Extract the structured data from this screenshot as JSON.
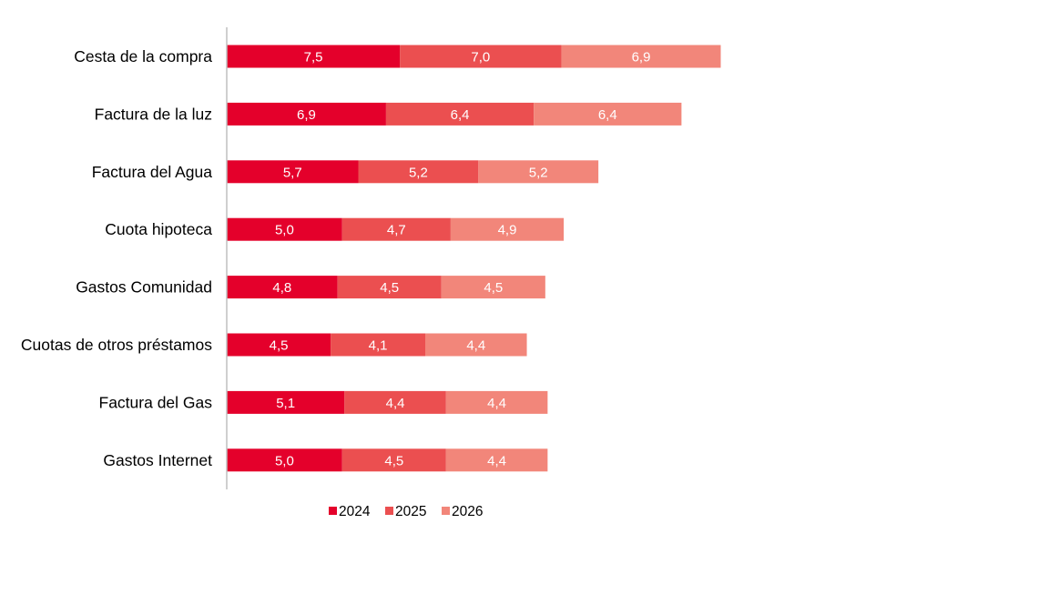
{
  "chart_data": {
    "type": "bar",
    "orientation": "horizontal",
    "stacked": true,
    "title": "",
    "xlabel": "",
    "ylabel": "",
    "xlim": [
      0,
      25
    ],
    "grid": false,
    "legend_position": "bottom",
    "categories": [
      "Cesta de la compra",
      "Factura de la luz",
      "Factura del Agua",
      "Cuota hipoteca",
      "Gastos Comunidad",
      "Cuotas de otros préstamos",
      "Factura del Gas",
      "Gastos Internet"
    ],
    "series": [
      {
        "name": "2024",
        "color": "#E4002B",
        "values": [
          7.5,
          6.9,
          5.7,
          5.0,
          4.8,
          4.5,
          5.1,
          5.0
        ],
        "labels": [
          "7,5",
          "6,9",
          "5,7",
          "5,0",
          "4,8",
          "4,5",
          "5,1",
          "5,0"
        ]
      },
      {
        "name": "2025",
        "color": "#EB4F50",
        "values": [
          7.0,
          6.4,
          5.2,
          4.7,
          4.5,
          4.1,
          4.4,
          4.5
        ],
        "labels": [
          "7,0",
          "6,4",
          "5,2",
          "4,7",
          "4,5",
          "4,1",
          "4,4",
          "4,5"
        ]
      },
      {
        "name": "2026",
        "color": "#F2867A",
        "values": [
          6.9,
          6.4,
          5.2,
          4.9,
          4.5,
          4.4,
          4.4,
          4.4
        ],
        "labels": [
          "6,9",
          "6,4",
          "5,2",
          "4,9",
          "4,5",
          "4,4",
          "4,4",
          "4,4"
        ]
      }
    ]
  },
  "axis_color": "#BFBFBF"
}
